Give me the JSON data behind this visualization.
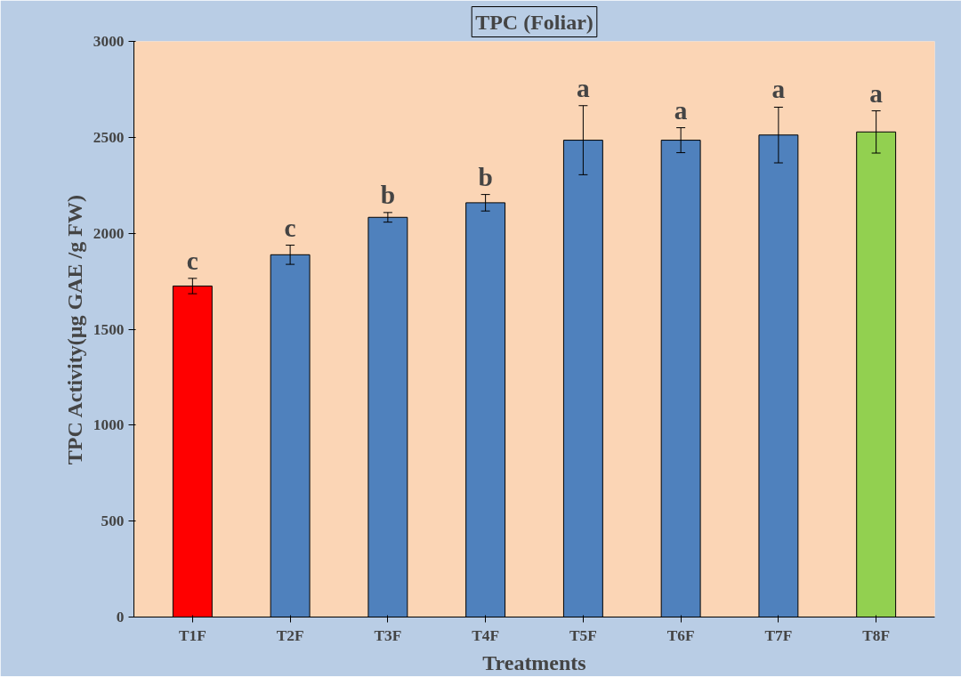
{
  "chart_data": {
    "type": "bar",
    "title": "TPC (Foliar)",
    "xlabel": "Treatments",
    "ylabel": "TPC Activity(µg GAE /g FW)",
    "categories": [
      "T1F",
      "T2F",
      "T3F",
      "T4F",
      "T5F",
      "T6F",
      "T7F",
      "T8F"
    ],
    "values": [
      1725,
      1888,
      2083,
      2159,
      2485,
      2485,
      2512,
      2528
    ],
    "errors": [
      40,
      50,
      25,
      43,
      180,
      65,
      145,
      110
    ],
    "colors": [
      "#ff0000",
      "#4f81bd",
      "#4f81bd",
      "#4f81bd",
      "#4f81bd",
      "#4f81bd",
      "#4f81bd",
      "#92d050"
    ],
    "ylim": [
      0,
      3000
    ],
    "yticks": [
      0,
      500,
      1000,
      1500,
      2000,
      2500,
      3000
    ],
    "grid": false,
    "annotations": [
      {
        "text": "c",
        "x": "T1F",
        "y": 1765
      },
      {
        "text": "c",
        "x": "T2F",
        "y": 1938
      },
      {
        "text": "b",
        "x": "T3F",
        "y": 2108
      },
      {
        "text": "b",
        "x": "T4F",
        "y": 2202
      },
      {
        "text": "a",
        "x": "T5F",
        "y": 2665
      },
      {
        "text": "a",
        "x": "T6F",
        "y": 2550
      },
      {
        "text": "a",
        "x": "T7F",
        "y": 2657
      },
      {
        "text": "a",
        "x": "T8F",
        "y": 2638
      }
    ]
  }
}
